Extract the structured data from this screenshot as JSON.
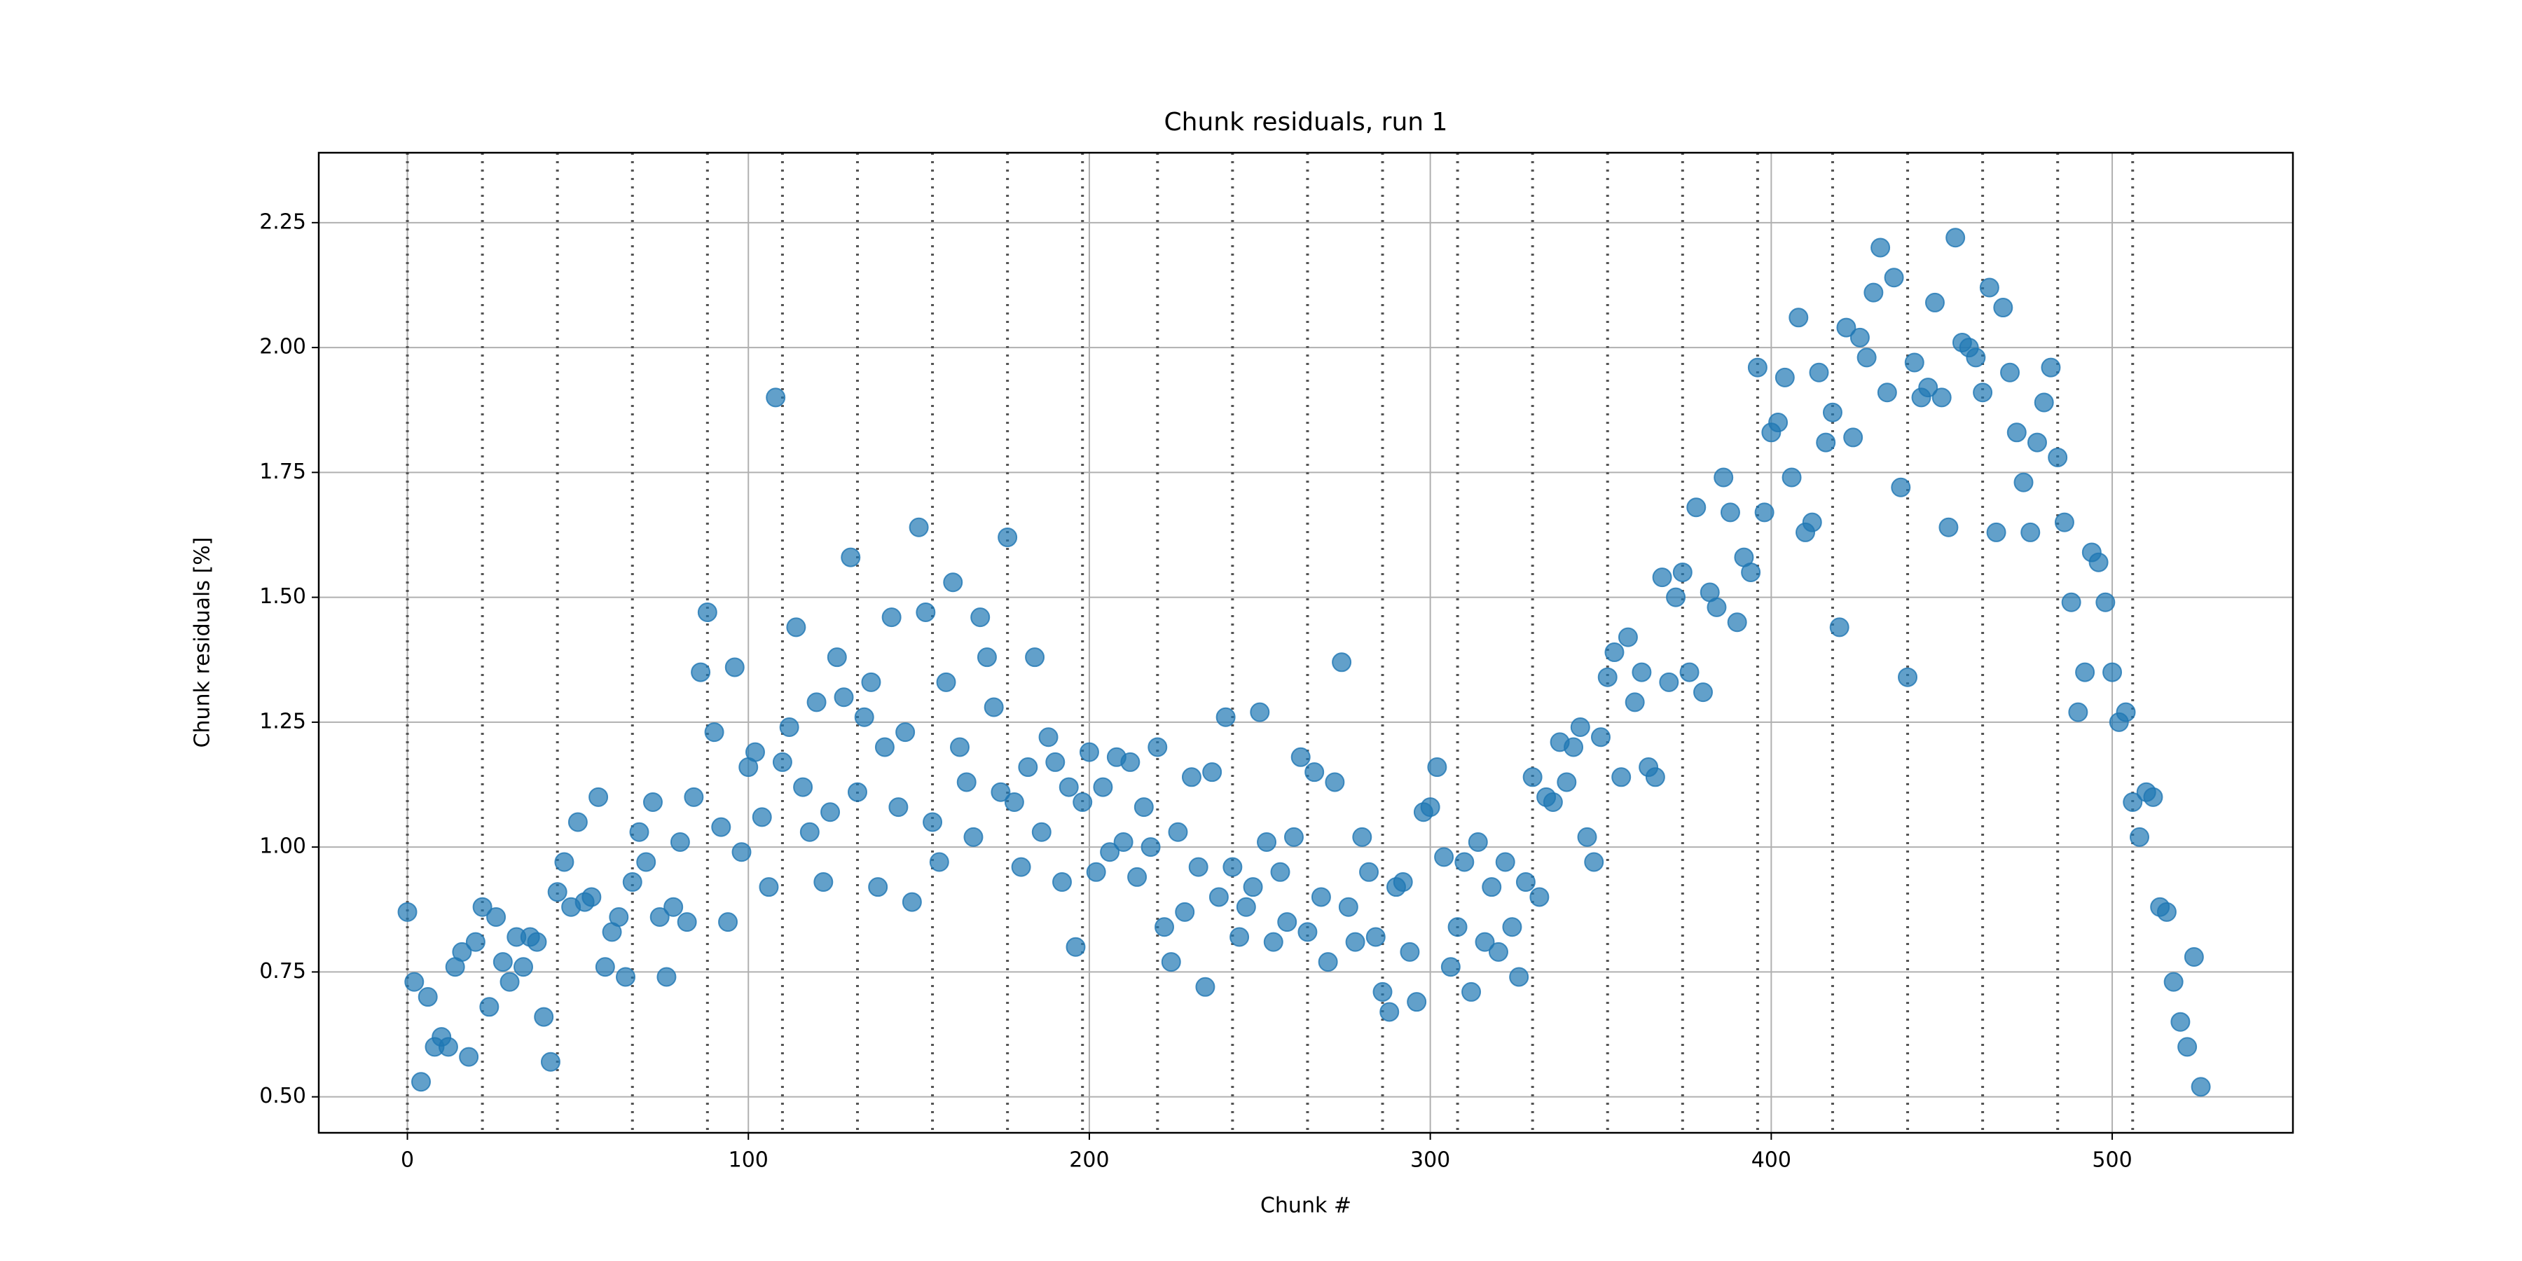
{
  "chart_data": {
    "type": "scatter",
    "title": "Chunk residuals, run 1",
    "xlabel": "Chunk #",
    "ylabel": "Chunk residuals [%]",
    "color": "#1f77b4",
    "grid": true,
    "xlim": [
      -26,
      553
    ],
    "ylim": [
      0.428,
      2.39
    ],
    "xticks": [
      0,
      100,
      200,
      300,
      400,
      500
    ],
    "yticks": [
      {
        "value": 0.5,
        "label": "0.50"
      },
      0.75,
      {
        "value": 1.0,
        "label": "1.00"
      },
      1.25,
      {
        "value": 1.5,
        "label": "1.50"
      },
      1.75,
      {
        "value": 2.0,
        "label": "2.00"
      },
      2.25
    ],
    "vlines": [
      0,
      22,
      44,
      66,
      88,
      110,
      132,
      154,
      176,
      198,
      220,
      242,
      264,
      286,
      308,
      330,
      352,
      374,
      396,
      418,
      440,
      462,
      484,
      506
    ],
    "x": [
      0,
      2,
      4,
      6,
      8,
      10,
      12,
      14,
      16,
      18,
      20,
      22,
      24,
      26,
      28,
      30,
      32,
      34,
      36,
      38,
      40,
      42,
      44,
      46,
      48,
      50,
      52,
      54,
      56,
      58,
      60,
      62,
      64,
      66,
      68,
      70,
      72,
      74,
      76,
      78,
      80,
      82,
      84,
      86,
      88,
      90,
      92,
      94,
      96,
      98,
      100,
      102,
      104,
      106,
      108,
      110,
      112,
      114,
      116,
      118,
      120,
      122,
      124,
      126,
      128,
      130,
      132,
      134,
      136,
      138,
      140,
      142,
      144,
      146,
      148,
      150,
      152,
      154,
      156,
      158,
      160,
      162,
      164,
      166,
      168,
      170,
      172,
      174,
      176,
      178,
      180,
      182,
      184,
      186,
      188,
      190,
      192,
      194,
      196,
      198,
      200,
      202,
      204,
      206,
      208,
      210,
      212,
      214,
      216,
      218,
      220,
      222,
      224,
      226,
      228,
      230,
      232,
      234,
      236,
      238,
      240,
      242,
      244,
      246,
      248,
      250,
      252,
      254,
      256,
      258,
      260,
      262,
      264,
      266,
      268,
      270,
      272,
      274,
      276,
      278,
      280,
      282,
      284,
      286,
      288,
      290,
      292,
      294,
      296,
      298,
      300,
      302,
      304,
      306,
      308,
      310,
      312,
      314,
      316,
      318,
      320,
      322,
      324,
      326,
      328,
      330,
      332,
      334,
      336,
      338,
      340,
      342,
      344,
      346,
      348,
      350,
      352,
      354,
      356,
      358,
      360,
      362,
      364,
      366,
      368,
      370,
      372,
      374,
      376,
      378,
      380,
      382,
      384,
      386,
      388,
      390,
      392,
      394,
      396,
      398,
      400,
      402,
      404,
      406,
      408,
      410,
      412,
      414,
      416,
      418,
      420,
      422,
      424,
      426,
      428,
      430,
      432,
      434,
      436,
      438,
      440,
      442,
      444,
      446,
      448,
      450,
      452,
      454,
      456,
      458,
      460,
      462,
      464,
      466,
      468,
      470,
      472,
      474,
      476,
      478,
      480,
      482,
      484,
      486,
      488,
      490,
      492,
      494,
      496,
      498,
      500,
      502,
      504,
      506,
      508,
      510,
      512,
      514,
      516,
      518,
      520,
      522,
      524,
      526
    ],
    "y": [
      0.87,
      0.73,
      0.53,
      0.7,
      0.6,
      0.62,
      0.6,
      0.76,
      0.79,
      0.58,
      0.81,
      0.88,
      0.68,
      0.86,
      0.77,
      0.73,
      0.82,
      0.76,
      0.82,
      0.81,
      0.66,
      0.57,
      0.91,
      0.97,
      0.88,
      1.05,
      0.89,
      0.9,
      1.1,
      0.76,
      0.83,
      0.86,
      0.74,
      0.93,
      1.03,
      0.97,
      1.09,
      0.86,
      0.74,
      0.88,
      1.01,
      0.85,
      1.1,
      1.35,
      1.47,
      1.23,
      1.04,
      0.85,
      1.36,
      0.99,
      1.16,
      1.19,
      1.06,
      0.92,
      1.9,
      1.17,
      1.24,
      1.44,
      1.12,
      1.03,
      1.29,
      0.93,
      1.07,
      1.38,
      1.3,
      1.58,
      1.11,
      1.26,
      1.33,
      0.92,
      1.2,
      1.46,
      1.08,
      1.23,
      0.89,
      1.64,
      1.47,
      1.05,
      0.97,
      1.33,
      1.53,
      1.2,
      1.13,
      1.02,
      1.46,
      1.38,
      1.28,
      1.11,
      1.62,
      1.09,
      0.96,
      1.16,
      1.38,
      1.03,
      1.22,
      1.17,
      0.93,
      1.12,
      0.8,
      1.09,
      1.19,
      0.95,
      1.12,
      0.99,
      1.18,
      1.01,
      1.17,
      0.94,
      1.08,
      1.0,
      1.2,
      0.84,
      0.77,
      1.03,
      0.87,
      1.14,
      0.96,
      0.72,
      1.15,
      0.9,
      1.26,
      0.96,
      0.82,
      0.88,
      0.92,
      1.27,
      1.01,
      0.81,
      0.95,
      0.85,
      1.02,
      1.18,
      0.83,
      1.15,
      0.9,
      0.77,
      1.13,
      1.37,
      0.88,
      0.81,
      1.02,
      0.95,
      0.82,
      0.71,
      0.67,
      0.92,
      0.93,
      0.79,
      0.69,
      1.07,
      1.08,
      1.16,
      0.98,
      0.76,
      0.84,
      0.97,
      0.71,
      1.01,
      0.81,
      0.92,
      0.79,
      0.97,
      0.84,
      0.74,
      0.93,
      1.14,
      0.9,
      1.1,
      1.09,
      1.21,
      1.13,
      1.2,
      1.24,
      1.02,
      0.97,
      1.22,
      1.34,
      1.39,
      1.14,
      1.42,
      1.29,
      1.35,
      1.16,
      1.14,
      1.54,
      1.33,
      1.5,
      1.55,
      1.35,
      1.68,
      1.31,
      1.51,
      1.48,
      1.74,
      1.67,
      1.45,
      1.58,
      1.55,
      1.96,
      1.67,
      1.83,
      1.85,
      1.94,
      1.74,
      2.06,
      1.63,
      1.65,
      1.95,
      1.81,
      1.87,
      1.44,
      2.04,
      1.82,
      2.02,
      1.98,
      2.11,
      2.2,
      1.91,
      2.14,
      1.72,
      1.34,
      1.97,
      1.9,
      1.92,
      2.09,
      1.9,
      1.64,
      2.22,
      2.01,
      2.0,
      1.98,
      1.91,
      2.12,
      1.63,
      2.08,
      1.95,
      1.83,
      1.73,
      1.63,
      1.81,
      1.89,
      1.96,
      1.78,
      1.65,
      1.49,
      1.27,
      1.35,
      1.59,
      1.57,
      1.49,
      1.35,
      1.25,
      1.27,
      1.09,
      1.02,
      1.11,
      1.1,
      0.88,
      0.87,
      0.73,
      0.65,
      0.6,
      0.78,
      0.52
    ]
  }
}
